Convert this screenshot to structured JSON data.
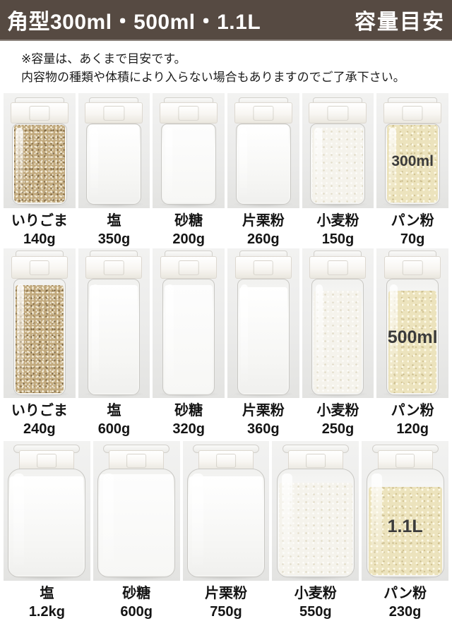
{
  "header": {
    "title": "角型300ml・500ml・1.1L",
    "badge": "容量目安"
  },
  "note": {
    "line1": "※容量は、あくまで目安です。",
    "line2": "内容物の種類や体積により入らない場合もありますのでご了承下さい。"
  },
  "colors": {
    "header_bg": "#564a42",
    "header_text": "#ffffff",
    "photo_cell_bg": "#ebebea",
    "sesame_fill": "#c2aa7e",
    "panko_fill": "#ece3bd",
    "capacity_text": "#3b3b3b"
  },
  "rows": [
    {
      "capacity": "300ml",
      "items": [
        {
          "name": "いりごま",
          "amount": "140g",
          "contents": "roasted-sesame"
        },
        {
          "name": "塩",
          "amount": "350g",
          "contents": "salt"
        },
        {
          "name": "砂糖",
          "amount": "200g",
          "contents": "sugar"
        },
        {
          "name": "片栗粉",
          "amount": "260g",
          "contents": "potato-starch"
        },
        {
          "name": "小麦粉",
          "amount": "150g",
          "contents": "wheat-flour"
        },
        {
          "name": "パン粉",
          "amount": "70g",
          "contents": "panko"
        }
      ]
    },
    {
      "capacity": "500ml",
      "items": [
        {
          "name": "いりごま",
          "amount": "240g",
          "contents": "roasted-sesame"
        },
        {
          "name": "塩",
          "amount": "600g",
          "contents": "salt"
        },
        {
          "name": "砂糖",
          "amount": "320g",
          "contents": "sugar"
        },
        {
          "name": "片栗粉",
          "amount": "360g",
          "contents": "potato-starch"
        },
        {
          "name": "小麦粉",
          "amount": "250g",
          "contents": "wheat-flour"
        },
        {
          "name": "パン粉",
          "amount": "120g",
          "contents": "panko"
        }
      ]
    },
    {
      "capacity": "1.1L",
      "items": [
        {
          "name": "塩",
          "amount": "1.2kg",
          "contents": "salt"
        },
        {
          "name": "砂糖",
          "amount": "600g",
          "contents": "sugar"
        },
        {
          "name": "片栗粉",
          "amount": "750g",
          "contents": "potato-starch"
        },
        {
          "name": "小麦粉",
          "amount": "550g",
          "contents": "wheat-flour"
        },
        {
          "name": "パン粉",
          "amount": "230g",
          "contents": "panko"
        }
      ]
    }
  ]
}
